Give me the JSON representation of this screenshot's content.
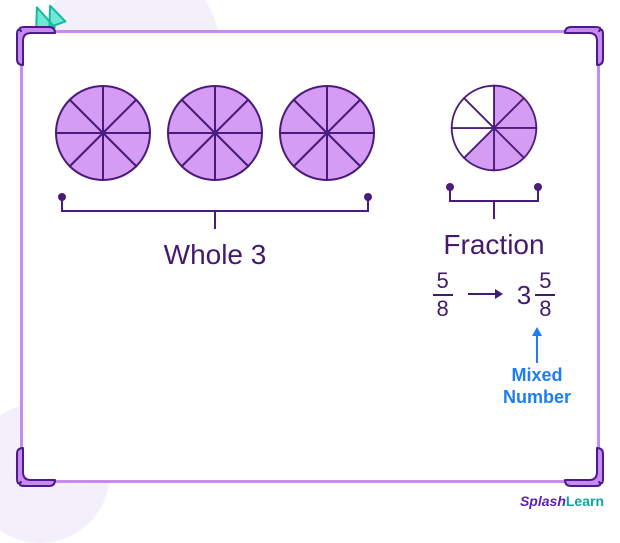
{
  "colors": {
    "board_border": "#c98aef",
    "corner_fill": "#c98aef",
    "corner_stroke": "#4b1a8f",
    "accent_fill": "#6fe8d8",
    "accent_stroke": "#19b89f",
    "bg_tint": "#f4f0fb",
    "pie_fill": "#d49cf3",
    "pie_empty": "#ffffff",
    "pie_stroke": "#4a1b7a",
    "text": "#431a6e",
    "brace": "#4a1b7a",
    "anno": "#1d7df2",
    "brand1": "#5b21b6",
    "brand2": "#0ea5a0"
  },
  "whole": {
    "count": 3,
    "slices_per_circle": 8,
    "label": "Whole  3"
  },
  "fraction": {
    "label": "Fraction",
    "slices_total": 8,
    "slices_filled": 5,
    "numerator": "5",
    "denominator": "8"
  },
  "mixed": {
    "whole": "3",
    "numerator": "5",
    "denominator": "8",
    "annotation_l1": "Mixed",
    "annotation_l2": "Number"
  },
  "brand": {
    "part1": "Splash",
    "part2": "Learn"
  }
}
